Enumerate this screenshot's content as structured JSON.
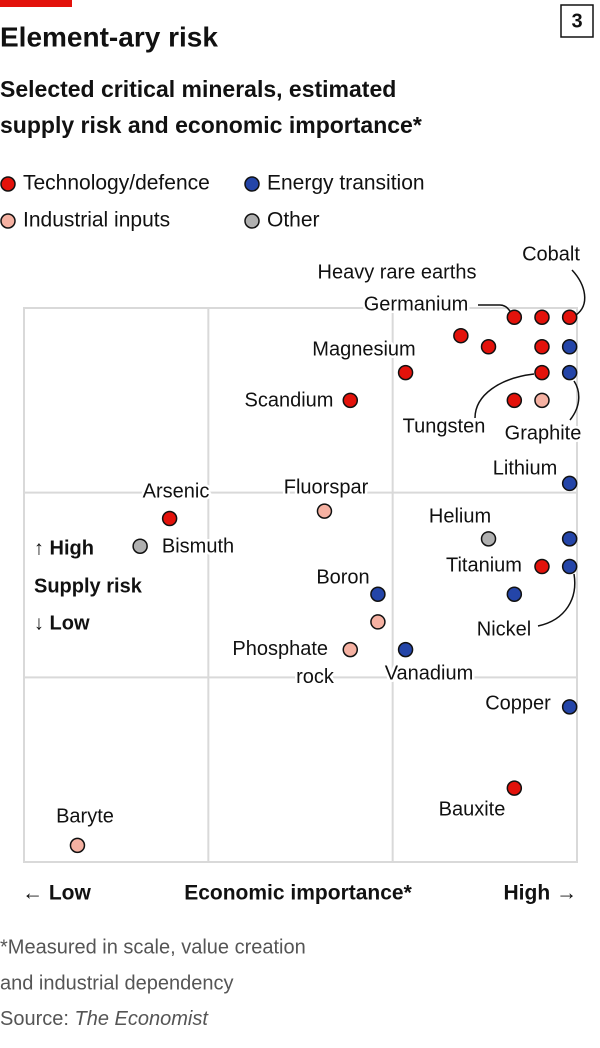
{
  "chart_data": {
    "type": "scatter",
    "chart_number": "3",
    "title": "Element-ary risk",
    "subtitle": [
      "Selected critical minerals, estimated",
      "supply risk and economic importance*"
    ],
    "xlim": [
      0,
      3
    ],
    "ylim": [
      0,
      3
    ],
    "xticks": [
      1,
      2
    ],
    "yticks": [
      1,
      2
    ],
    "grid": true,
    "y_axis_label": {
      "high": "↑ High",
      "title": "Supply risk",
      "low": "↓ Low"
    },
    "x_axis_label": {
      "low": "← Low",
      "title": "Economic importance*",
      "high": "High →"
    },
    "series": [
      {
        "name": "Technology/defence",
        "color": "#e3120b",
        "x": [
          2.96,
          2.81,
          2.66,
          2.37,
          2.52,
          2.81,
          2.07,
          2.81,
          1.77,
          2.66,
          0.79,
          2.81,
          2.66
        ],
        "values": [
          2.95,
          2.95,
          2.95,
          2.85,
          2.79,
          2.79,
          2.65,
          2.65,
          2.5,
          2.5,
          1.86,
          1.6,
          0.4
        ],
        "labels": [
          "Cobalt",
          "Heavy rare earths",
          "Germanium",
          null,
          null,
          null,
          "Magnesium",
          "Tungsten",
          "Scandium",
          null,
          "Arsenic",
          "Titanium",
          "Bauxite"
        ]
      },
      {
        "name": "Energy transition",
        "color": "#2445a8",
        "x": [
          2.96,
          2.96,
          2.96,
          2.96,
          2.96,
          2.66,
          1.92,
          2.07,
          2.96
        ],
        "values": [
          2.79,
          2.65,
          2.05,
          1.75,
          1.6,
          1.45,
          1.45,
          1.15,
          0.84
        ],
        "labels": [
          null,
          "Graphite",
          "Lithium",
          null,
          "Nickel",
          null,
          "Boron",
          "Vanadium",
          "Copper"
        ]
      },
      {
        "name": "Industrial inputs",
        "color": "#f5b1a2",
        "x": [
          2.81,
          1.63,
          1.92,
          1.77,
          0.29
        ],
        "values": [
          2.5,
          1.9,
          1.3,
          1.15,
          0.09
        ],
        "labels": [
          null,
          "Fluorspar",
          null,
          "Phosphate rock",
          "Baryte"
        ]
      },
      {
        "name": "Other",
        "color": "#b0b0b0",
        "x": [
          2.52,
          0.63
        ],
        "values": [
          1.75,
          1.71
        ],
        "labels": [
          "Helium",
          "Bismuth"
        ]
      }
    ],
    "footnote": [
      "*Measured in scale, value creation",
      "and industrial dependency"
    ],
    "source": {
      "label": "Source:",
      "name": "The Economist"
    }
  }
}
